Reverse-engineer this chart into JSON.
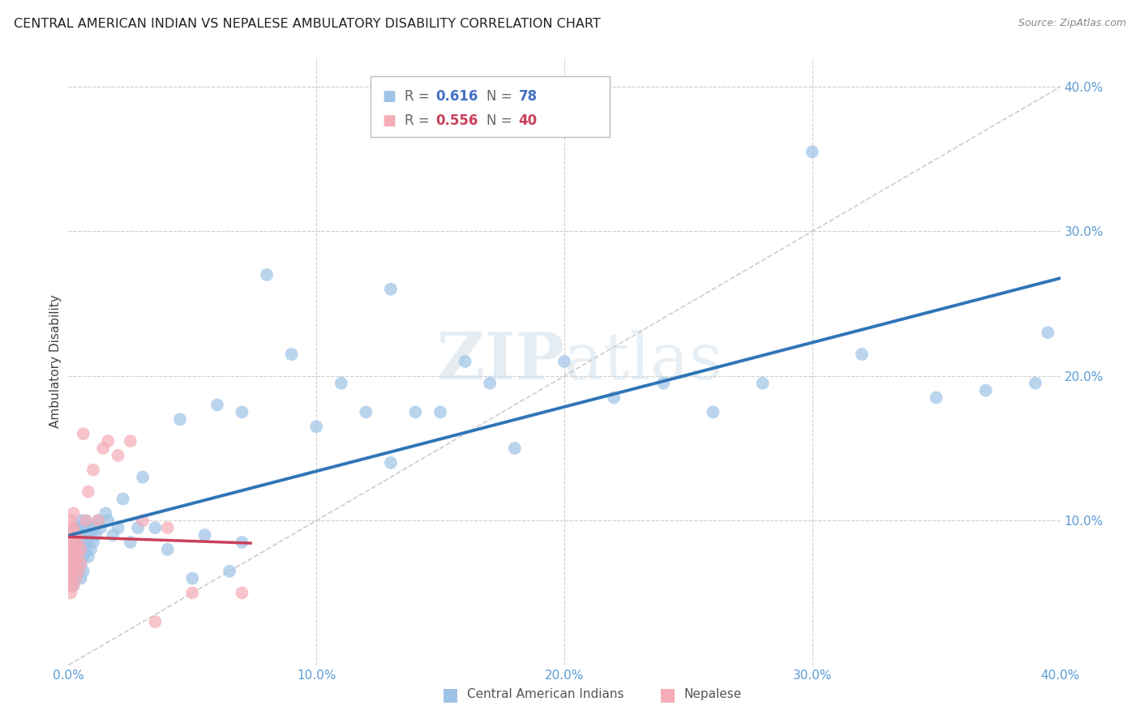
{
  "title": "CENTRAL AMERICAN INDIAN VS NEPALESE AMBULATORY DISABILITY CORRELATION CHART",
  "source": "Source: ZipAtlas.com",
  "ylabel": "Ambulatory Disability",
  "watermark": "ZIPatlas",
  "xlim": [
    0.0,
    0.4
  ],
  "ylim": [
    0.0,
    0.42
  ],
  "xticks": [
    0.0,
    0.1,
    0.2,
    0.3,
    0.4
  ],
  "yticks": [
    0.1,
    0.2,
    0.3,
    0.4
  ],
  "xticklabels": [
    "0.0%",
    "10.0%",
    "20.0%",
    "30.0%",
    "40.0%"
  ],
  "yticklabels": [
    "10.0%",
    "20.0%",
    "30.0%",
    "40.0%"
  ],
  "tick_color": "#5b9bd5",
  "blue_color": "#9dc3e6",
  "pink_color": "#f4acb7",
  "trendline_blue": "#2e75b6",
  "trendline_pink": "#c9405a",
  "trendline_dashed_color": "#c8c8c8",
  "legend_label_blue": "Central American Indians",
  "legend_label_pink": "Nepalese",
  "blue_x": [
    0.001,
    0.001,
    0.001,
    0.002,
    0.002,
    0.002,
    0.002,
    0.003,
    0.003,
    0.003,
    0.003,
    0.003,
    0.004,
    0.004,
    0.004,
    0.004,
    0.005,
    0.005,
    0.005,
    0.005,
    0.005,
    0.006,
    0.006,
    0.006,
    0.006,
    0.007,
    0.007,
    0.007,
    0.008,
    0.008,
    0.008,
    0.009,
    0.009,
    0.01,
    0.01,
    0.011,
    0.012,
    0.013,
    0.015,
    0.016,
    0.018,
    0.02,
    0.022,
    0.025,
    0.028,
    0.03,
    0.035,
    0.04,
    0.045,
    0.05,
    0.055,
    0.06,
    0.065,
    0.07,
    0.08,
    0.09,
    0.1,
    0.11,
    0.12,
    0.13,
    0.14,
    0.15,
    0.16,
    0.17,
    0.18,
    0.2,
    0.22,
    0.24,
    0.26,
    0.28,
    0.3,
    0.32,
    0.35,
    0.37,
    0.39,
    0.395,
    0.13,
    0.07
  ],
  "blue_y": [
    0.06,
    0.07,
    0.08,
    0.055,
    0.065,
    0.075,
    0.085,
    0.06,
    0.07,
    0.08,
    0.09,
    0.095,
    0.065,
    0.075,
    0.085,
    0.095,
    0.06,
    0.07,
    0.08,
    0.09,
    0.1,
    0.065,
    0.075,
    0.085,
    0.095,
    0.08,
    0.09,
    0.1,
    0.075,
    0.085,
    0.095,
    0.08,
    0.09,
    0.085,
    0.095,
    0.09,
    0.1,
    0.095,
    0.105,
    0.1,
    0.09,
    0.095,
    0.115,
    0.085,
    0.095,
    0.13,
    0.095,
    0.08,
    0.17,
    0.06,
    0.09,
    0.18,
    0.065,
    0.085,
    0.27,
    0.215,
    0.165,
    0.195,
    0.175,
    0.14,
    0.175,
    0.175,
    0.21,
    0.195,
    0.15,
    0.21,
    0.185,
    0.195,
    0.175,
    0.195,
    0.355,
    0.215,
    0.185,
    0.19,
    0.195,
    0.23,
    0.26,
    0.175
  ],
  "pink_x": [
    0.001,
    0.001,
    0.001,
    0.001,
    0.001,
    0.001,
    0.001,
    0.001,
    0.001,
    0.001,
    0.001,
    0.002,
    0.002,
    0.002,
    0.002,
    0.002,
    0.002,
    0.003,
    0.003,
    0.003,
    0.003,
    0.004,
    0.004,
    0.004,
    0.005,
    0.005,
    0.006,
    0.007,
    0.008,
    0.01,
    0.012,
    0.014,
    0.016,
    0.02,
    0.025,
    0.03,
    0.035,
    0.04,
    0.05,
    0.07
  ],
  "pink_y": [
    0.055,
    0.06,
    0.065,
    0.07,
    0.075,
    0.08,
    0.085,
    0.09,
    0.095,
    0.1,
    0.05,
    0.055,
    0.065,
    0.075,
    0.085,
    0.095,
    0.105,
    0.06,
    0.07,
    0.08,
    0.09,
    0.065,
    0.075,
    0.085,
    0.07,
    0.08,
    0.16,
    0.1,
    0.12,
    0.135,
    0.1,
    0.15,
    0.155,
    0.145,
    0.155,
    0.1,
    0.03,
    0.095,
    0.05,
    0.05
  ]
}
